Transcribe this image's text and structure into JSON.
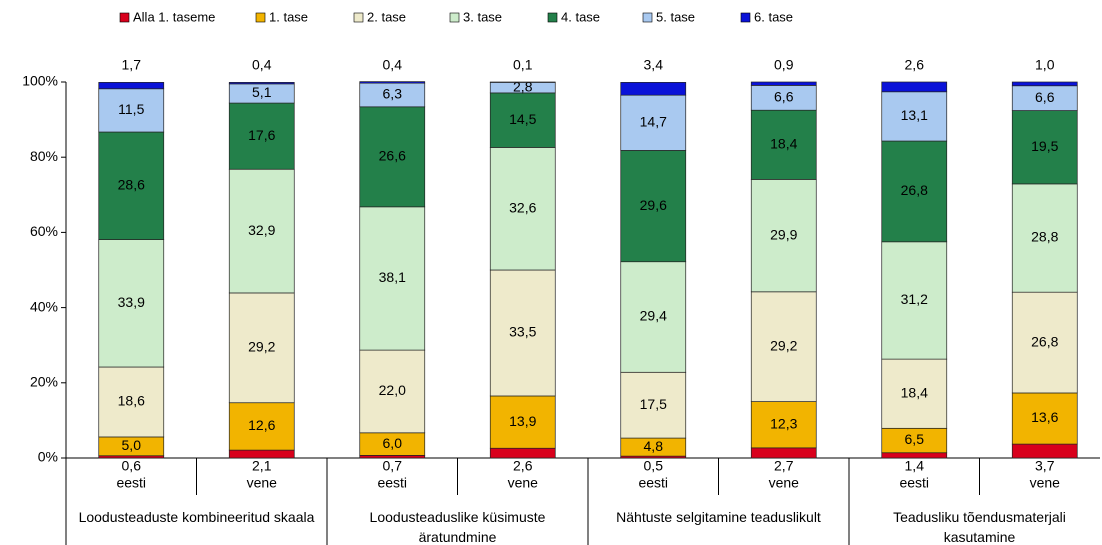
{
  "chart_data": {
    "type": "stacked_bar",
    "categories": [
      "eesti",
      "vene",
      "eesti",
      "vene",
      "eesti",
      "vene",
      "eesti",
      "vene"
    ],
    "groups": [
      "Loodusteaduste kombineeritud skaala",
      "Loodusteaduslike küsimuste äratundmine",
      "Nähtuste selgitamine teaduslikult",
      "Teadusliku tõendusmaterjali kasutamine"
    ],
    "ylim": [
      0,
      100
    ],
    "yticks": [
      {
        "value": 0,
        "label": "0%"
      },
      {
        "value": 20,
        "label": "20%"
      },
      {
        "value": 40,
        "label": "40%"
      },
      {
        "value": 60,
        "label": "60%"
      },
      {
        "value": 80,
        "label": "80%"
      },
      {
        "value": 100,
        "label": "100%"
      }
    ],
    "series": [
      {
        "name": "Alla 1. taseme",
        "color": "#d8001c",
        "values": [
          0.6,
          2.1,
          0.7,
          2.6,
          0.5,
          2.7,
          1.4,
          3.7
        ],
        "value_labels": [
          "0,6",
          "2,1",
          "0,7",
          "2,6",
          "0,5",
          "2,7",
          "1,4",
          "3,7"
        ]
      },
      {
        "name": "1. tase",
        "color": "#f2b400",
        "values": [
          5.0,
          12.6,
          6.0,
          13.9,
          4.8,
          12.3,
          6.5,
          13.6
        ],
        "value_labels": [
          "5,0",
          "12,6",
          "6,0",
          "13,9",
          "4,8",
          "12,3",
          "6,5",
          "13,6"
        ]
      },
      {
        "name": "2. tase",
        "color": "#eeeacb",
        "values": [
          18.6,
          29.2,
          22.0,
          33.5,
          17.5,
          29.2,
          18.4,
          26.8
        ],
        "value_labels": [
          "18,6",
          "29,2",
          "22,0",
          "33,5",
          "17,5",
          "29,2",
          "18,4",
          "26,8"
        ]
      },
      {
        "name": "3. tase",
        "color": "#cdeccb",
        "values": [
          33.9,
          32.9,
          38.1,
          32.6,
          29.4,
          29.9,
          31.2,
          28.8
        ],
        "value_labels": [
          "33,9",
          "32,9",
          "38,1",
          "32,6",
          "29,4",
          "29,9",
          "31,2",
          "28,8"
        ]
      },
      {
        "name": "4. tase",
        "color": "#23804a",
        "values": [
          28.6,
          17.6,
          26.6,
          14.5,
          29.6,
          18.4,
          26.8,
          19.5
        ],
        "value_labels": [
          "28,6",
          "17,6",
          "26,6",
          "14,5",
          "29,6",
          "18,4",
          "26,8",
          "19,5"
        ]
      },
      {
        "name": "5. tase",
        "color": "#a9c9f0",
        "values": [
          11.5,
          5.1,
          6.3,
          2.8,
          14.7,
          6.6,
          13.1,
          6.6
        ],
        "value_labels": [
          "11,5",
          "5,1",
          "6,3",
          "2,8",
          "14,7",
          "6,6",
          "13,1",
          "6,6"
        ]
      },
      {
        "name": "6. tase",
        "color": "#0a12d8",
        "values": [
          1.7,
          0.4,
          0.4,
          0.1,
          3.4,
          0.9,
          2.6,
          1.0
        ],
        "value_labels": [
          "1,7",
          "0,4",
          "0,4",
          "0,1",
          "3,4",
          "0,9",
          "2,6",
          "1,0"
        ]
      }
    ]
  }
}
